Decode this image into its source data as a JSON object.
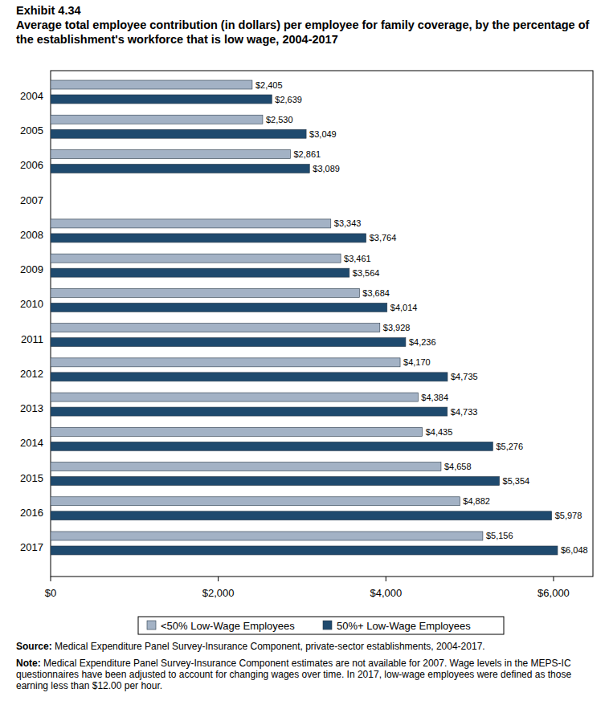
{
  "chart_data": {
    "type": "bar",
    "orientation": "horizontal",
    "title": "Exhibit 4.34",
    "subtitle": "Average total employee contribution (in dollars) per employee for family coverage, by the percentage of the establishment's workforce that is low wage, 2004-2017",
    "annotations": [
      "Source: Medical Expenditure Panel Survey-Insurance Component, private-sector establishments, 2004-2017.",
      "Note: Medical Expenditure Panel Survey-Insurance Component estimates are not available for 2007. Wage levels in the MEPS-IC questionnaires have been adjusted to account for changing wages over time. In 2017, low-wage employees were defined as those earning less than $12.00 per hour."
    ],
    "categories": [
      "2004",
      "2005",
      "2006",
      "2007",
      "2008",
      "2009",
      "2010",
      "2011",
      "2012",
      "2013",
      "2014",
      "2015",
      "2016",
      "2017"
    ],
    "series": [
      {
        "name": "<50% Low-Wage Employees",
        "color": "#a3b2c5",
        "values": [
          2405,
          2530,
          2861,
          null,
          3343,
          3461,
          3684,
          3928,
          4170,
          4384,
          4435,
          4658,
          4882,
          5156
        ],
        "value_labels": [
          "$2,405",
          "$2,530",
          "$2,861",
          null,
          "$3,343",
          "$3,461",
          "$3,684",
          "$3,928",
          "$4,170",
          "$4,384",
          "$4,435",
          "$4,658",
          "$4,882",
          "$5,156"
        ]
      },
      {
        "name": "50%+ Low-Wage Employees",
        "color": "#1f4a6e",
        "values": [
          2639,
          3049,
          3089,
          null,
          3764,
          3564,
          4014,
          4236,
          4735,
          4733,
          5276,
          5354,
          5978,
          6048
        ],
        "value_labels": [
          "$2,639",
          "$3,049",
          "$3,089",
          null,
          "$3,764",
          "$3,564",
          "$4,014",
          "$4,236",
          "$4,735",
          "$4,733",
          "$5,276",
          "$5,354",
          "$5,978",
          "$6,048"
        ]
      }
    ],
    "xlim": [
      0,
      6470
    ],
    "xticks": [
      {
        "value": 0,
        "label": "$0"
      },
      {
        "value": 2000,
        "label": "$2,000"
      },
      {
        "value": 4000,
        "label": "$4,000"
      },
      {
        "value": 6000,
        "label": "$6,000"
      }
    ],
    "grid": false,
    "legend": "bottom",
    "data_labels": true
  }
}
